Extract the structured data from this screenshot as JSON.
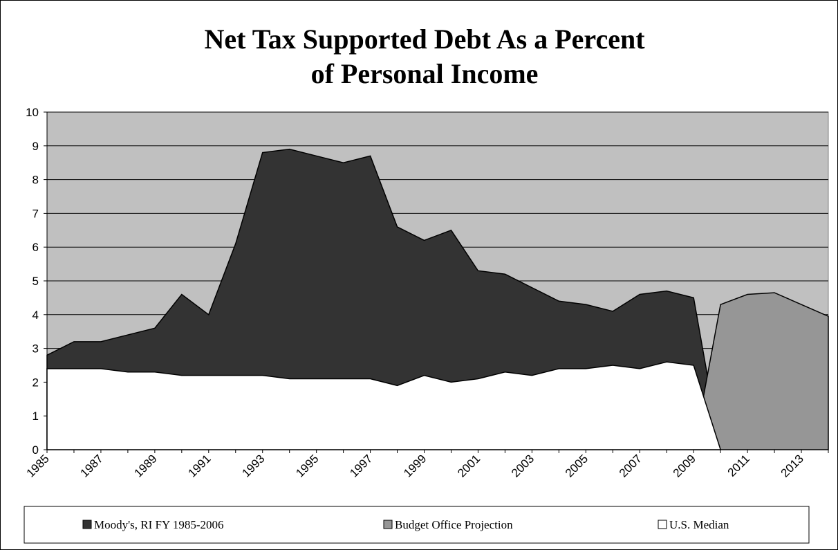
{
  "chart_data": {
    "type": "area",
    "title": "Net Tax Supported Debt As a Percent of Personal Income",
    "categories": [
      "1985",
      null,
      "1987",
      null,
      "1989",
      null,
      "1991",
      null,
      "1993",
      null,
      "1995",
      null,
      "1997",
      null,
      "1999",
      null,
      "2001",
      null,
      "2003",
      null,
      "2005",
      null,
      "2007",
      null,
      "2009",
      null,
      "2011",
      null,
      "2013",
      null
    ],
    "series": [
      {
        "name": "Moody's, RI FY 1985-2006",
        "color": "#333333",
        "values": [
          2.8,
          3.2,
          3.2,
          3.4,
          3.6,
          4.6,
          4.0,
          6.1,
          8.8,
          8.9,
          8.7,
          8.5,
          8.7,
          6.6,
          6.2,
          6.5,
          5.3,
          5.2,
          4.8,
          4.4,
          4.3,
          4.1,
          4.6,
          4.7,
          4.5,
          0,
          null,
          null,
          null,
          null
        ]
      },
      {
        "name": "Budget Office Projection",
        "color": "#969696",
        "values": [
          null,
          null,
          null,
          null,
          null,
          null,
          null,
          null,
          null,
          null,
          null,
          null,
          null,
          null,
          null,
          null,
          null,
          null,
          null,
          null,
          null,
          null,
          null,
          null,
          0,
          4.3,
          4.6,
          4.65,
          4.3,
          3.95
        ]
      },
      {
        "name": "U.S. Median",
        "color": "#ffffff",
        "values": [
          2.4,
          2.4,
          2.4,
          2.3,
          2.3,
          2.2,
          2.2,
          2.2,
          2.2,
          2.1,
          2.1,
          2.1,
          2.1,
          1.9,
          2.2,
          2.0,
          2.1,
          2.3,
          2.2,
          2.4,
          2.4,
          2.5,
          2.4,
          2.6,
          2.5,
          0,
          null,
          null,
          null,
          null
        ]
      }
    ],
    "ylim": [
      0,
      10
    ],
    "yticks": [
      0,
      1,
      2,
      3,
      4,
      5,
      6,
      7,
      8,
      9,
      10
    ],
    "grid": true,
    "legend": "bottom"
  }
}
